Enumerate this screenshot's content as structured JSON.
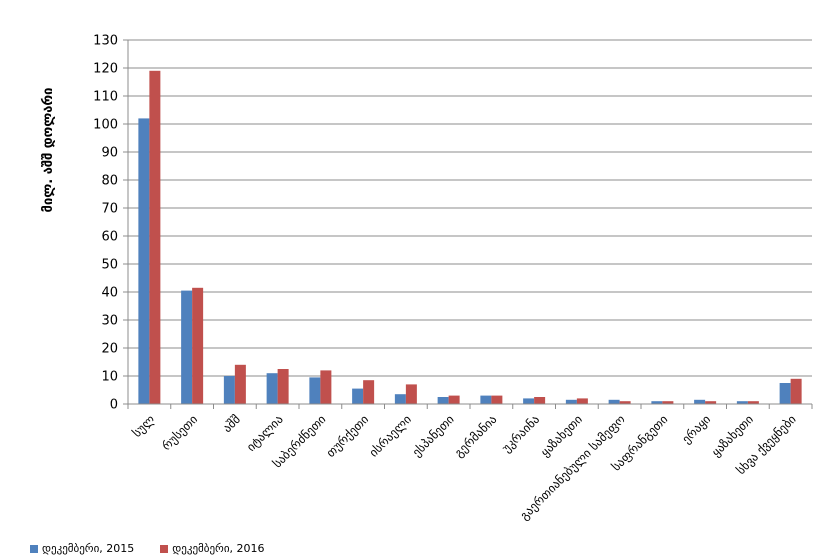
{
  "chart_data": {
    "type": "bar",
    "ylabel": "მილ. აშშ დოლარი",
    "ylim": [
      0,
      130
    ],
    "yticks": [
      0,
      10,
      20,
      30,
      40,
      50,
      60,
      70,
      80,
      90,
      100,
      110,
      120,
      130
    ],
    "grid": true,
    "legend_position": "bottom-left",
    "categories": [
      "სულ",
      "რუსეთი",
      "აშშ",
      "იტალია",
      "საბერძნეთი",
      "თურქეთი",
      "ისრაელი",
      "ესპანეთი",
      "გერმანია",
      "უკრაინა",
      "ყაზახეთი",
      "გაერთიანებული სამეფო",
      "საფრანგეთი",
      "ერაყი",
      "ყაზახეთი",
      "სხვა ქვეყნები"
    ],
    "series": [
      {
        "name": "დეკემბერი, 2015",
        "color": "#4f81bd",
        "values": [
          102,
          40.5,
          10,
          11,
          9.5,
          5.5,
          3.5,
          2.5,
          3,
          2,
          1.5,
          1.5,
          1,
          1.5,
          1,
          7.5
        ]
      },
      {
        "name": "დეკემბერი, 2016",
        "color": "#c0504d",
        "values": [
          119,
          41.5,
          14,
          12.5,
          12,
          8.5,
          7,
          3,
          3,
          2.5,
          2,
          1,
          1,
          1,
          1,
          9
        ]
      }
    ]
  }
}
